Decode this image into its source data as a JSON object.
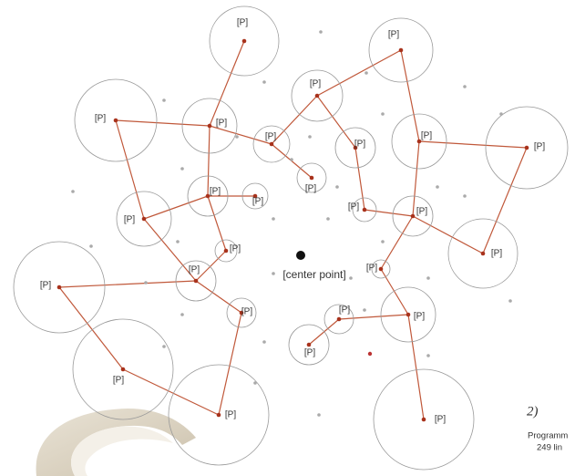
{
  "nodes": [
    {
      "label": "[P]"
    },
    {
      "label": "[P]"
    },
    {
      "label": "[P]"
    },
    {
      "label": "[P]"
    },
    {
      "label": "[P]"
    },
    {
      "label": "[P]"
    },
    {
      "label": "[P]"
    },
    {
      "label": "[P]"
    },
    {
      "label": "[P]"
    },
    {
      "label": "[P]"
    },
    {
      "label": "[P]"
    },
    {
      "label": "[P]"
    },
    {
      "label": "[P]"
    },
    {
      "label": "[P]"
    },
    {
      "label": "[P]"
    },
    {
      "label": "[P]"
    },
    {
      "label": "[P]"
    },
    {
      "label": "[P]"
    },
    {
      "label": "[P]"
    },
    {
      "label": "[P]"
    },
    {
      "label": "[P]"
    },
    {
      "label": "[P]"
    },
    {
      "label": "[P]"
    },
    {
      "label": "[P]"
    },
    {
      "label": "[P]"
    },
    {
      "label": "[P]"
    },
    {
      "label": "[P]"
    }
  ],
  "center": {
    "label": "[center point]"
  },
  "caption": {
    "number": "2)",
    "lines": [
      "Programm",
      "249 lin"
    ]
  }
}
